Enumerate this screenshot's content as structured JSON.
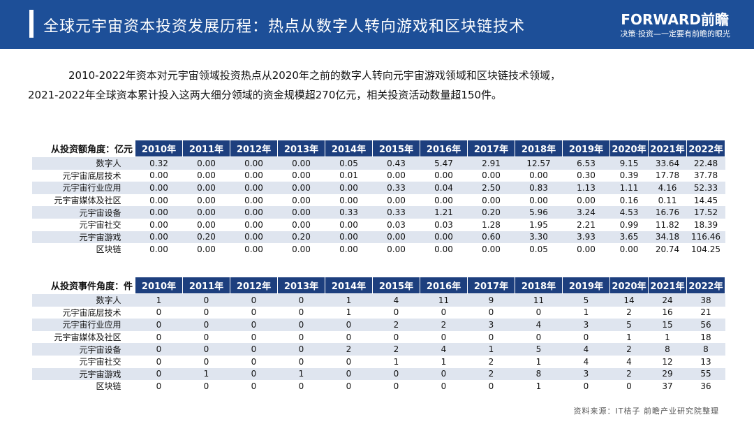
{
  "header": {
    "title": "全球元宇宙资本投资发展历程：热点从数字人转向游戏和区块链技术",
    "logo": "FORWARD前瞻",
    "tagline": "决策·投资—一定要有前瞻的眼光"
  },
  "intro": [
    "2010-2022年资本对元宇宙领域投资热点从2020年之前的数字人转向元宇宙游戏领域和区块链技术领域，",
    "2021-2022年全球资本累计投入这两大细分领域的资金规模超270亿元，相关投资活动数量超150件。"
  ],
  "tables": [
    {
      "corner": "从投资额角度：亿元",
      "columns": [
        "2010年",
        "2011年",
        "2012年",
        "2013年",
        "2014年",
        "2015年",
        "2016年",
        "2017年",
        "2018年",
        "2019年",
        "2020年",
        "2021年",
        "2022年"
      ],
      "rows": [
        {
          "label": "数字人",
          "values": [
            "0.32",
            "0.00",
            "0.00",
            "0.00",
            "0.05",
            "0.43",
            "5.47",
            "2.91",
            "12.57",
            "6.53",
            "9.15",
            "33.64",
            "22.48"
          ]
        },
        {
          "label": "元宇宙底层技术",
          "values": [
            "0.00",
            "0.00",
            "0.00",
            "0.00",
            "0.01",
            "0.00",
            "0.00",
            "0.00",
            "0.00",
            "0.30",
            "0.39",
            "17.78",
            "37.78"
          ]
        },
        {
          "label": "元宇宙行业应用",
          "values": [
            "0.00",
            "0.00",
            "0.00",
            "0.00",
            "0.00",
            "0.33",
            "0.04",
            "2.50",
            "0.83",
            "1.13",
            "1.11",
            "4.16",
            "52.33"
          ]
        },
        {
          "label": "元宇宙媒体及社区",
          "values": [
            "0.00",
            "0.00",
            "0.00",
            "0.00",
            "0.00",
            "0.00",
            "0.00",
            "0.00",
            "0.00",
            "0.00",
            "0.16",
            "0.11",
            "14.45"
          ]
        },
        {
          "label": "元宇宙设备",
          "values": [
            "0.00",
            "0.00",
            "0.00",
            "0.00",
            "0.33",
            "0.33",
            "1.21",
            "0.20",
            "5.96",
            "3.24",
            "4.53",
            "16.76",
            "17.52"
          ]
        },
        {
          "label": "元宇宙社交",
          "values": [
            "0.00",
            "0.00",
            "0.00",
            "0.00",
            "0.00",
            "0.03",
            "0.03",
            "1.28",
            "1.95",
            "2.21",
            "0.99",
            "11.82",
            "18.39"
          ]
        },
        {
          "label": "元宇宙游戏",
          "values": [
            "0.00",
            "0.20",
            "0.00",
            "0.20",
            "0.00",
            "0.00",
            "0.00",
            "0.60",
            "3.30",
            "3.93",
            "3.65",
            "34.18",
            "116.46"
          ]
        },
        {
          "label": "区块链",
          "values": [
            "0.00",
            "0.00",
            "0.00",
            "0.00",
            "0.00",
            "0.00",
            "0.00",
            "0.00",
            "0.05",
            "0.00",
            "0.00",
            "20.74",
            "104.25"
          ]
        }
      ]
    },
    {
      "corner": "从投资事件角度：件",
      "columns": [
        "2010年",
        "2011年",
        "2012年",
        "2013年",
        "2014年",
        "2015年",
        "2016年",
        "2017年",
        "2018年",
        "2019年",
        "2020年",
        "2021年",
        "2022年"
      ],
      "rows": [
        {
          "label": "数字人",
          "values": [
            "1",
            "0",
            "0",
            "0",
            "1",
            "4",
            "11",
            "9",
            "11",
            "5",
            "14",
            "24",
            "38"
          ]
        },
        {
          "label": "元宇宙底层技术",
          "values": [
            "0",
            "0",
            "0",
            "0",
            "1",
            "0",
            "0",
            "0",
            "0",
            "1",
            "2",
            "16",
            "21"
          ]
        },
        {
          "label": "元宇宙行业应用",
          "values": [
            "0",
            "0",
            "0",
            "0",
            "0",
            "2",
            "2",
            "3",
            "4",
            "3",
            "5",
            "15",
            "56"
          ]
        },
        {
          "label": "元宇宙媒体及社区",
          "values": [
            "0",
            "0",
            "0",
            "0",
            "0",
            "0",
            "0",
            "0",
            "0",
            "0",
            "1",
            "1",
            "18"
          ]
        },
        {
          "label": "元宇宙设备",
          "values": [
            "0",
            "0",
            "0",
            "0",
            "2",
            "2",
            "4",
            "1",
            "5",
            "4",
            "2",
            "8",
            "8"
          ]
        },
        {
          "label": "元宇宙社交",
          "values": [
            "0",
            "0",
            "0",
            "0",
            "0",
            "1",
            "1",
            "2",
            "1",
            "4",
            "4",
            "12",
            "13"
          ]
        },
        {
          "label": "元宇宙游戏",
          "values": [
            "0",
            "1",
            "0",
            "1",
            "0",
            "0",
            "0",
            "2",
            "8",
            "3",
            "2",
            "29",
            "55"
          ]
        },
        {
          "label": "区块链",
          "values": [
            "0",
            "0",
            "0",
            "0",
            "0",
            "0",
            "0",
            "0",
            "1",
            "0",
            "0",
            "37",
            "36"
          ]
        }
      ]
    }
  ],
  "source": "资料来源：IT桔子 前瞻产业研究院整理"
}
